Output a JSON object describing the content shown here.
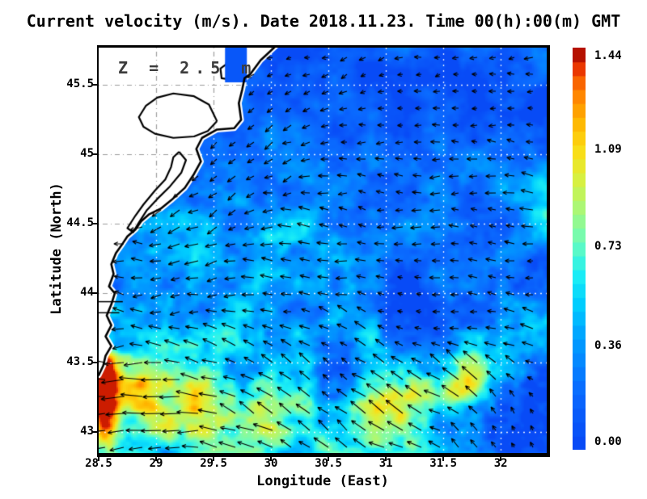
{
  "title": "Current velocity (m/s). Date 2018.11.23. Time 00(h):00(m) GMT",
  "annotation": "Z = 2.5 m",
  "chart_data": {
    "type": "heatmap",
    "subtype": "ocean-current-speed-with-quiver-vectors",
    "title": "Current velocity (m/s). Date 2018.11.23. Time 00(h):00(m) GMT",
    "xlabel": "Longitude (East)",
    "ylabel": "Latitude (North)",
    "depth_annotation": "Z = 2.5 m",
    "xlim": [
      28.5,
      32.4
    ],
    "ylim": [
      42.85,
      45.77
    ],
    "x_ticks": [
      28.5,
      29,
      29.5,
      30,
      30.5,
      31,
      31.5,
      32
    ],
    "y_ticks": [
      43,
      43.5,
      44,
      44.5,
      45,
      45.5
    ],
    "grid": true,
    "colorbar": {
      "unit": "m/s",
      "min": 0.0,
      "max": 1.44,
      "tick_values": [
        1.44,
        1.09,
        0.73,
        0.36,
        0.0
      ],
      "tick_labels": [
        "1.44",
        "1.09",
        "0.73",
        "0.36",
        "0.00"
      ],
      "steps": 29,
      "colormap_stops": [
        [
          0.0,
          8,
          70,
          245
        ],
        [
          0.15,
          10,
          108,
          255
        ],
        [
          0.28,
          0,
          160,
          255
        ],
        [
          0.36,
          0,
          205,
          255
        ],
        [
          0.44,
          30,
          240,
          245
        ],
        [
          0.52,
          110,
          252,
          185
        ],
        [
          0.6,
          170,
          248,
          120
        ],
        [
          0.68,
          220,
          240,
          60
        ],
        [
          0.75,
          252,
          220,
          20
        ],
        [
          0.82,
          255,
          180,
          0
        ],
        [
          0.9,
          255,
          120,
          0
        ],
        [
          0.96,
          230,
          40,
          0
        ],
        [
          1.0,
          145,
          0,
          0
        ]
      ]
    },
    "field": {
      "description": "speed field m/s: calm blue (~0.1-0.3) north/east, mottled cyan-green west, energetic yellow-red (0.5-1.3) along SW coast and southern band",
      "seed": 1123,
      "base": 0.16,
      "base_south_gain": 0.1,
      "noise_bias": 0.45,
      "noise_amp": 0.5,
      "noise_amp_south_gain": 0.45,
      "clamp": [
        0.03,
        1.4
      ],
      "features": [
        {
          "lon": 30.3,
          "lat": 42.95,
          "rx": 1.8,
          "ry": 0.55,
          "amp": 0.3
        },
        {
          "lon": 29.0,
          "lat": 43.2,
          "rx": 0.8,
          "ry": 0.45,
          "amp": 0.25
        },
        {
          "lon": 29.4,
          "lat": 44.3,
          "rx": 0.8,
          "ry": 0.5,
          "amp": 0.16
        },
        {
          "lon": 29.0,
          "lat": 43.9,
          "rx": 0.5,
          "ry": 0.4,
          "amp": 0.14
        },
        {
          "lon": 28.56,
          "lat": 43.42,
          "rx": 0.1,
          "ry": 0.22,
          "amp": 0.95
        },
        {
          "lon": 28.55,
          "lat": 43.1,
          "rx": 0.12,
          "ry": 0.28,
          "amp": 0.9
        },
        {
          "lon": 28.9,
          "lat": 43.32,
          "rx": 0.35,
          "ry": 0.25,
          "amp": 0.4
        },
        {
          "lon": 29.6,
          "lat": 43.15,
          "rx": 0.5,
          "ry": 0.2,
          "amp": 0.35
        },
        {
          "lon": 30.95,
          "lat": 43.3,
          "rx": 0.45,
          "ry": 0.28,
          "amp": 0.5
        },
        {
          "lon": 31.69,
          "lat": 43.41,
          "rx": 0.25,
          "ry": 0.2,
          "amp": 0.5
        },
        {
          "lon": 32.42,
          "lat": 44.52,
          "rx": 0.25,
          "ry": 0.18,
          "amp": 0.55
        },
        {
          "lon": 32.35,
          "lat": 44.78,
          "rx": 0.2,
          "ry": 0.12,
          "amp": 0.38
        },
        {
          "lon": 30.1,
          "lat": 44.47,
          "rx": 0.3,
          "ry": 0.14,
          "amp": 0.28
        },
        {
          "lon": 30.67,
          "lat": 43.38,
          "rx": 0.35,
          "ry": 0.22,
          "amp": -0.42
        },
        {
          "lon": 31.2,
          "lat": 43.95,
          "rx": 0.35,
          "ry": 0.25,
          "amp": -0.3
        },
        {
          "lon": 32.2,
          "lat": 43.0,
          "rx": 0.5,
          "ry": 0.3,
          "amp": -0.35
        },
        {
          "lon": 32.0,
          "lat": 45.35,
          "rx": 0.7,
          "ry": 0.4,
          "amp": -0.15
        },
        {
          "lon": 30.4,
          "lat": 45.6,
          "rx": 0.9,
          "ry": 0.35,
          "amp": -0.12
        }
      ]
    },
    "quiver": {
      "spacing_x": 23,
      "spacing_y": 21,
      "noise_amp": 0.5,
      "base_flow": {
        "u": -0.42,
        "v": 0.03
      },
      "flow_regions": [
        {
          "lon": 30.8,
          "lat": 43.3,
          "rx": 1.1,
          "ry": 0.5,
          "u": -0.5,
          "v": 0.7
        },
        {
          "lon": 28.9,
          "lat": 43.25,
          "rx": 0.5,
          "ry": 0.4,
          "u": -0.8,
          "v": -0.05
        },
        {
          "lon": 32.3,
          "lat": 43.0,
          "rx": 0.45,
          "ry": 0.33,
          "u": 0.15,
          "v": 0.95
        },
        {
          "lon": 31.9,
          "lat": 44.4,
          "rx": 0.9,
          "ry": 0.7,
          "u": -0.75,
          "v": 0.1
        },
        {
          "lon": 29.4,
          "lat": 44.7,
          "rx": 0.5,
          "ry": 0.6,
          "u": -0.2,
          "v": -0.5
        },
        {
          "lon": 29.95,
          "lat": 45.35,
          "rx": 0.45,
          "ry": 0.35,
          "u": -0.35,
          "v": -0.5
        },
        {
          "lon": 30.9,
          "lat": 45.45,
          "rx": 1.4,
          "ry": 0.45,
          "u": -0.15,
          "v": -0.2
        },
        {
          "lon": 30.1,
          "lat": 44.15,
          "rx": 0.6,
          "ry": 0.4,
          "u": -0.6,
          "v": 0.1
        }
      ]
    },
    "coastline": [
      [
        30.04,
        45.78
      ],
      [
        29.91,
        45.68
      ],
      [
        29.82,
        45.58
      ],
      [
        29.77,
        45.55
      ],
      [
        29.75,
        45.47
      ],
      [
        29.72,
        45.37
      ],
      [
        29.74,
        45.25
      ],
      [
        29.68,
        45.19
      ],
      [
        29.53,
        45.18
      ],
      [
        29.4,
        45.12
      ],
      [
        29.35,
        45.04
      ],
      [
        29.39,
        44.95
      ],
      [
        29.33,
        44.86
      ],
      [
        29.25,
        44.76
      ],
      [
        29.13,
        44.67
      ],
      [
        29.04,
        44.61
      ],
      [
        28.94,
        44.57
      ],
      [
        28.87,
        44.52
      ],
      [
        28.82,
        44.46
      ],
      [
        28.75,
        44.41
      ],
      [
        28.71,
        44.36
      ],
      [
        28.65,
        44.29
      ],
      [
        28.61,
        44.21
      ],
      [
        28.63,
        44.14
      ],
      [
        28.59,
        44.05
      ],
      [
        28.64,
        44.0
      ],
      [
        28.61,
        43.92
      ],
      [
        28.57,
        43.84
      ],
      [
        28.61,
        43.77
      ],
      [
        28.56,
        43.69
      ],
      [
        28.61,
        43.62
      ],
      [
        28.56,
        43.55
      ],
      [
        28.54,
        43.48
      ],
      [
        28.5,
        43.41
      ],
      [
        28.4,
        43.41
      ],
      [
        28.4,
        45.85
      ],
      [
        30.04,
        45.85
      ]
    ],
    "lagoons": [
      [
        [
          29.53,
          45.24
        ],
        [
          29.46,
          45.36
        ],
        [
          29.33,
          45.42
        ],
        [
          29.15,
          45.44
        ],
        [
          29.01,
          45.41
        ],
        [
          28.91,
          45.35
        ],
        [
          28.85,
          45.27
        ],
        [
          28.89,
          45.2
        ],
        [
          28.99,
          45.15
        ],
        [
          29.15,
          45.12
        ],
        [
          29.33,
          45.13
        ],
        [
          29.45,
          45.17
        ],
        [
          29.53,
          45.24
        ]
      ],
      [
        [
          29.2,
          45.02
        ],
        [
          29.26,
          44.96
        ],
        [
          29.22,
          44.87
        ],
        [
          29.12,
          44.77
        ],
        [
          29.01,
          44.68
        ],
        [
          28.92,
          44.6
        ],
        [
          28.85,
          44.51
        ],
        [
          28.8,
          44.44
        ],
        [
          28.75,
          44.47
        ],
        [
          28.82,
          44.56
        ],
        [
          28.89,
          44.64
        ],
        [
          28.99,
          44.74
        ],
        [
          29.08,
          44.82
        ],
        [
          29.13,
          44.91
        ],
        [
          29.15,
          44.98
        ],
        [
          29.2,
          45.02
        ]
      ]
    ],
    "rivers": [
      [
        [
          29.63,
          45.78
        ],
        [
          29.61,
          45.65
        ],
        [
          29.56,
          45.62
        ],
        [
          29.57,
          45.55
        ],
        [
          29.65,
          45.54
        ]
      ],
      [
        [
          29.7,
          45.78
        ],
        [
          29.68,
          45.66
        ],
        [
          29.72,
          45.59
        ],
        [
          29.74,
          45.54
        ]
      ]
    ],
    "harbor_lines": [
      [
        [
          28.5,
          43.94
        ],
        [
          28.71,
          43.94
        ]
      ],
      [
        [
          28.5,
          43.86
        ],
        [
          28.68,
          43.86
        ]
      ]
    ],
    "inlet": {
      "lon0": 29.6,
      "lon1": 29.79,
      "lat0": 45.52,
      "lat1": 45.82,
      "value": 0.1
    }
  }
}
